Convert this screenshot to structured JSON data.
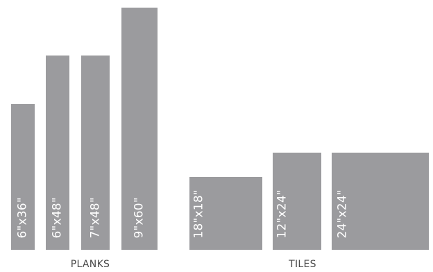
{
  "groups": [
    {
      "name": "PLANKS",
      "items": [
        {
          "label": "6\"x36\"",
          "width_in": 6,
          "length_in": 36
        },
        {
          "label": "6\"x48\"",
          "width_in": 6,
          "length_in": 48
        },
        {
          "label": "7\"x48\"",
          "width_in": 7,
          "length_in": 48
        },
        {
          "label": "9\"x60\"",
          "width_in": 9,
          "length_in": 60
        }
      ]
    },
    {
      "name": "TILES",
      "items": [
        {
          "label": "18\"x18\"",
          "width_in": 18,
          "length_in": 18
        },
        {
          "label": "12\"x24\"",
          "width_in": 12,
          "length_in": 24
        },
        {
          "label": "24\"x24\"",
          "width_in": 24,
          "length_in": 24
        }
      ]
    }
  ],
  "colors": {
    "shape_fill": "#9b9b9e",
    "label_text": "#ffffff",
    "group_label_text": "#4a4a4a"
  }
}
